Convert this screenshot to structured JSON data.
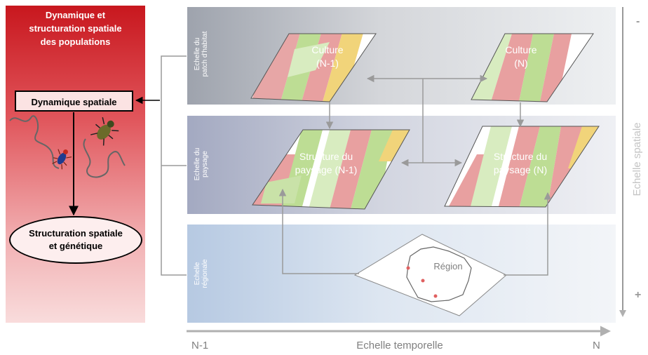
{
  "left_panel": {
    "title_lines": [
      "Dynamique et",
      "structuration spatiale",
      "des populations"
    ],
    "box_label": "Dynamique spatiale",
    "ellipse_lines": [
      "Structuration spatiale",
      "et génétique"
    ]
  },
  "bands": {
    "habitat_lines": [
      "Echelle du",
      "patch d'habitat"
    ],
    "paysage_lines": [
      "Echelle du",
      "paysage"
    ],
    "regionale_lines": [
      "Echelle",
      "régionale"
    ]
  },
  "maps": {
    "culture_prev": [
      "Culture",
      "(N-1)"
    ],
    "culture_curr": [
      "Culture",
      "(N)"
    ],
    "structure_prev": [
      "Structure du",
      "paysage (N-1)"
    ],
    "structure_curr": [
      "Structure du",
      "paysage (N)"
    ],
    "region": "Région"
  },
  "axes": {
    "temporal_label": "Echelle temporelle",
    "start": "N-1",
    "end": "N",
    "spatial_label": "Echelle spatiale",
    "spatial_top": "-",
    "spatial_bottom": "+"
  },
  "colors": {
    "red_panel": "#c8171e",
    "field_green": "#b9dc8c",
    "field_red": "#e8a0a0",
    "field_yellow": "#f1d47a",
    "arrow_grey": "#a0a0a0"
  }
}
